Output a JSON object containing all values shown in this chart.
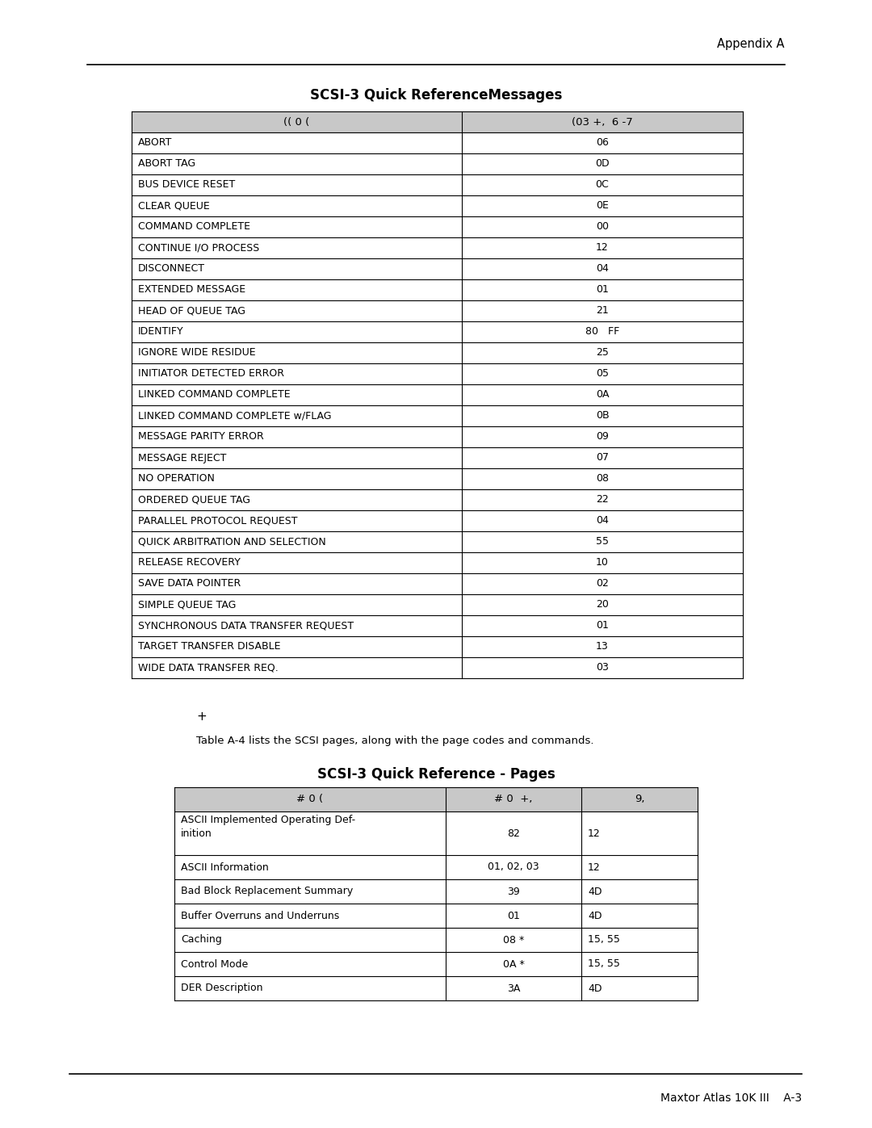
{
  "page_header_right": "Appendix A",
  "table1_title": "SCSI-3 Quick ReferenceMessages",
  "table1_header": [
    "(( 0 (",
    "(03 +,  6 -7"
  ],
  "table1_rows": [
    [
      "ABORT",
      "06"
    ],
    [
      "ABORT TAG",
      "0D"
    ],
    [
      "BUS DEVICE RESET",
      "0C"
    ],
    [
      "CLEAR QUEUE",
      "0E"
    ],
    [
      "COMMAND COMPLETE",
      "00"
    ],
    [
      "CONTINUE I/O PROCESS",
      "12"
    ],
    [
      "DISCONNECT",
      "04"
    ],
    [
      "EXTENDED MESSAGE",
      "01"
    ],
    [
      "HEAD OF QUEUE TAG",
      "21"
    ],
    [
      "IDENTIFY",
      "80   FF"
    ],
    [
      "IGNORE WIDE RESIDUE",
      "25"
    ],
    [
      "INITIATOR DETECTED ERROR",
      "05"
    ],
    [
      "LINKED COMMAND COMPLETE",
      "0A"
    ],
    [
      "LINKED COMMAND COMPLETE w/FLAG",
      "0B"
    ],
    [
      "MESSAGE PARITY ERROR",
      "09"
    ],
    [
      "MESSAGE REJECT",
      "07"
    ],
    [
      "NO OPERATION",
      "08"
    ],
    [
      "ORDERED QUEUE TAG",
      "22"
    ],
    [
      "PARALLEL PROTOCOL REQUEST",
      "04"
    ],
    [
      "QUICK ARBITRATION AND SELECTION",
      "55"
    ],
    [
      "RELEASE RECOVERY",
      "10"
    ],
    [
      "SAVE DATA POINTER",
      "02"
    ],
    [
      "SIMPLE QUEUE TAG",
      "20"
    ],
    [
      "SYNCHRONOUS DATA TRANSFER REQUEST",
      "01"
    ],
    [
      "TARGET TRANSFER DISABLE",
      "13"
    ],
    [
      "WIDE DATA TRANSFER REQ.",
      "03"
    ]
  ],
  "note_symbol": "+",
  "note_text": "Table A-4 lists the SCSI pages, along with the page codes and commands.",
  "table2_title": "SCSI-3 Quick Reference - Pages",
  "table2_header": [
    "# 0 (",
    "# 0  +,",
    "9,"
  ],
  "table2_rows": [
    [
      "ASCII Implemented Operating Def-\ninition",
      "82",
      "12"
    ],
    [
      "ASCII Information",
      "01, 02, 03",
      "12"
    ],
    [
      "Bad Block Replacement Summary",
      "39",
      "4D"
    ],
    [
      "Buffer Overruns and Underruns",
      "01",
      "4D"
    ],
    [
      "Caching",
      "08 *",
      "15, 55"
    ],
    [
      "Control Mode",
      "0A *",
      "15, 55"
    ],
    [
      "DER Description",
      "3A",
      "4D"
    ]
  ],
  "footer_text": "Maxtor Atlas 10K III    A-3",
  "bg_color": "#ffffff",
  "text_color": "#000000"
}
